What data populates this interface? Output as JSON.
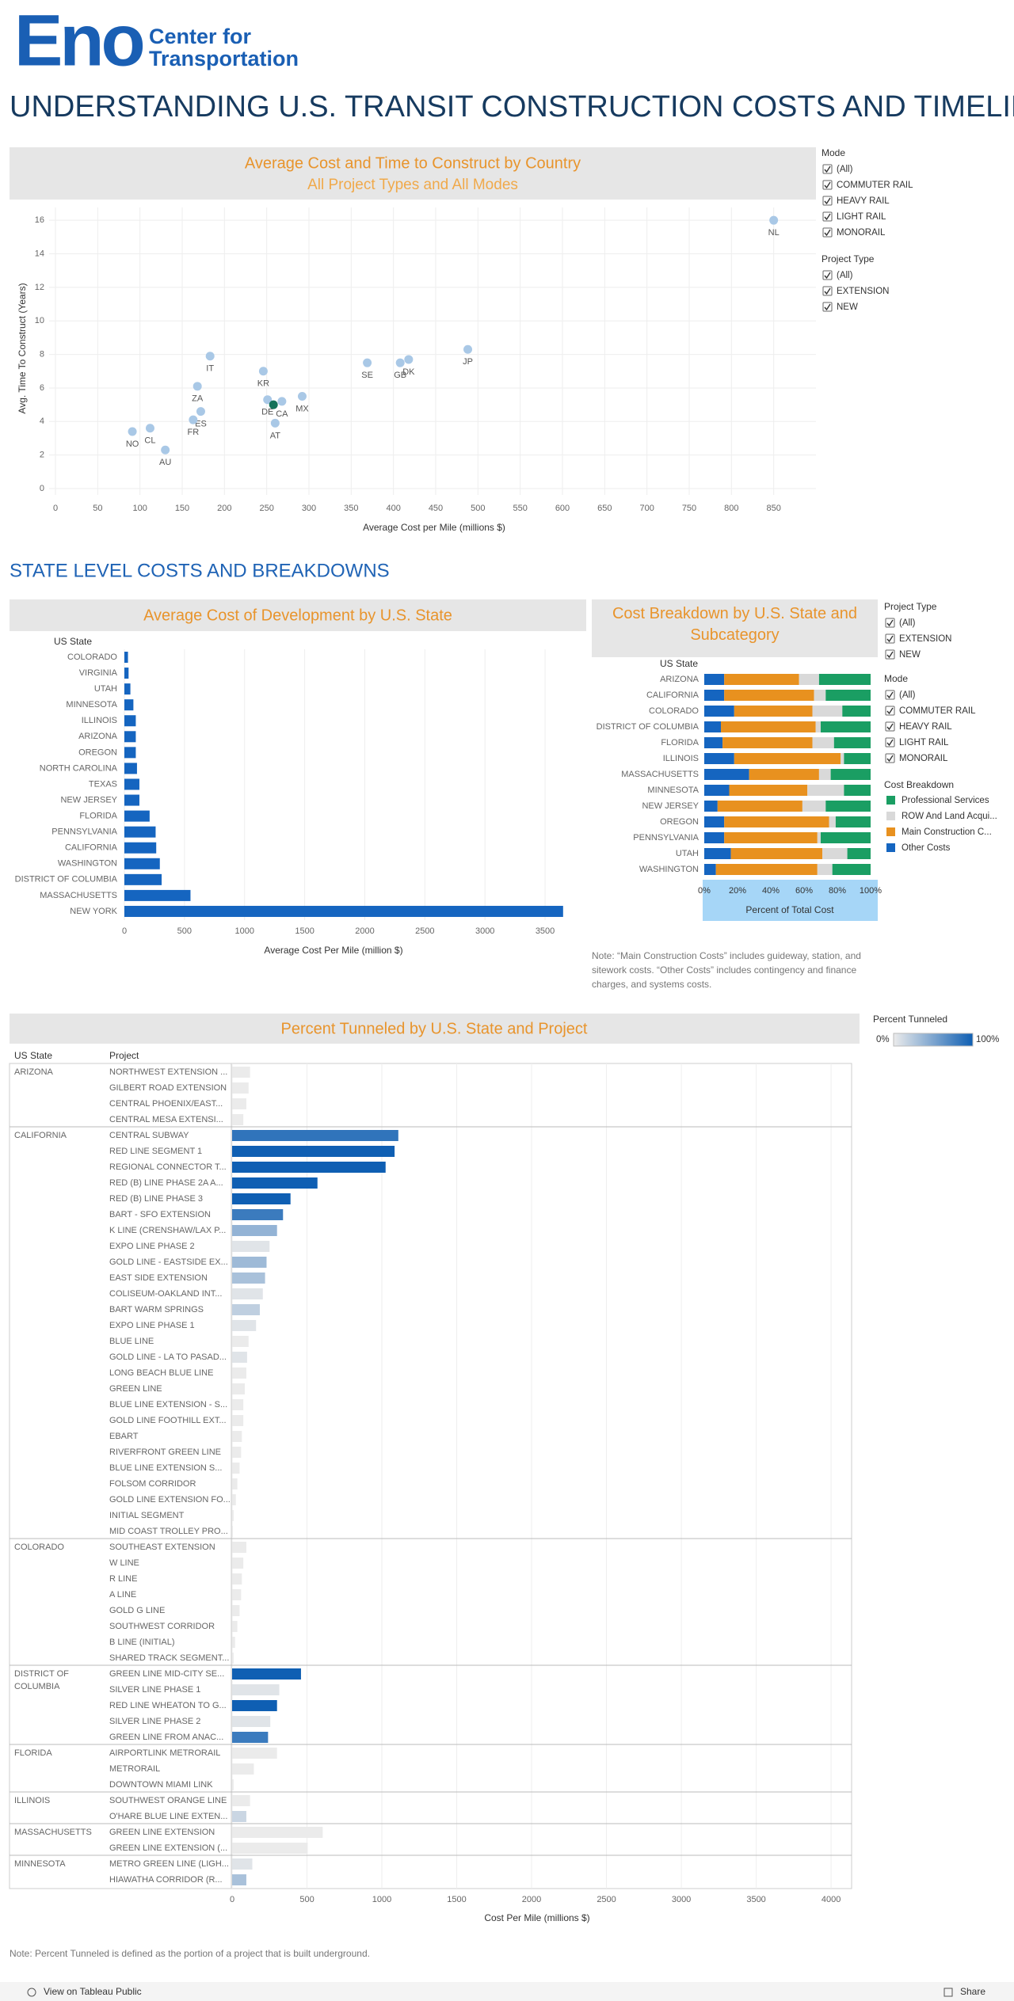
{
  "header": {
    "logo_main": "Eno",
    "logo_line1": "Center for",
    "logo_line2": "Transportation",
    "title": "UNDERSTANDING U.S. TRANSIT CONSTRUCTION COSTS AND TIMELINES"
  },
  "filters_top": {
    "mode_title": "Mode",
    "mode_options": [
      "(All)",
      "COMMUTER RAIL",
      "HEAVY RAIL",
      "LIGHT RAIL",
      "MONORAIL"
    ],
    "project_type_title": "Project Type",
    "project_type_options": [
      "(All)",
      "EXTENSION",
      "NEW"
    ]
  },
  "section_heading": "STATE LEVEL COSTS AND BREAKDOWNS",
  "filters_state": {
    "project_type_title": "Project Type",
    "project_type_options": [
      "(All)",
      "EXTENSION",
      "NEW"
    ],
    "mode_title": "Mode",
    "mode_options": [
      "(All)",
      "COMMUTER RAIL",
      "HEAVY RAIL",
      "LIGHT RAIL",
      "MONORAIL"
    ]
  },
  "chart_data": [
    {
      "type": "scatter",
      "title": "Average Cost and Time to Construct by Country",
      "subtitle": "All Project Types and All Modes",
      "x_label": "Average Cost per Mile (millions $)",
      "y_label": "Avg. Time To Construct (Years)",
      "point_labels": [
        "NL",
        "JP",
        "DK",
        "GB",
        "SE",
        "IT",
        "KR",
        "ZA",
        "ES",
        "FR",
        "DE",
        null,
        "CA",
        "MX",
        "AT",
        "NO",
        "CL",
        "AU"
      ],
      "x": [
        850,
        488,
        418,
        408,
        369,
        183,
        246,
        168,
        172,
        163,
        251,
        258,
        268,
        292,
        260,
        91,
        112,
        130
      ],
      "values": [
        16.0,
        8.3,
        7.7,
        7.5,
        7.5,
        7.9,
        7.0,
        6.1,
        4.6,
        4.1,
        5.3,
        5.0,
        5.2,
        5.5,
        3.9,
        3.4,
        3.6,
        2.3
      ],
      "colors": [
        "#a9c8e6",
        "#a9c8e6",
        "#a9c8e6",
        "#a9c8e6",
        "#a9c8e6",
        "#a9c8e6",
        "#a9c8e6",
        "#a9c8e6",
        "#a9c8e6",
        "#a9c8e6",
        "#a9c8e6",
        "#14725a",
        "#a9c8e6",
        "#a9c8e6",
        "#a9c8e6",
        "#a9c8e6",
        "#a9c8e6",
        "#a9c8e6"
      ],
      "xlim": [
        0,
        900
      ],
      "xticks": [
        0,
        50,
        100,
        150,
        200,
        250,
        300,
        350,
        400,
        450,
        500,
        550,
        600,
        650,
        700,
        750,
        800,
        850
      ],
      "ylim": [
        0,
        17
      ],
      "yticks": [
        0,
        2,
        4,
        6,
        8,
        10,
        12,
        14,
        16
      ],
      "grid": true
    },
    {
      "type": "bar",
      "orientation": "horizontal",
      "title": "Average Cost of Development by U.S. State",
      "y_axis_title": "US State",
      "x_label": "Average Cost Per Mile (million $)",
      "categories": [
        "COLORADO",
        "VIRGINIA",
        "UTAH",
        "MINNESOTA",
        "ILLINOIS",
        "ARIZONA",
        "OREGON",
        "NORTH CAROLINA",
        "TEXAS",
        "NEW JERSEY",
        "FLORIDA",
        "PENNSYLVANIA",
        "CALIFORNIA",
        "WASHINGTON",
        "DISTRICT OF COLUMBIA",
        "MASSACHUSETTS",
        "NEW YORK"
      ],
      "values": [
        30,
        35,
        50,
        75,
        95,
        95,
        95,
        105,
        125,
        125,
        210,
        260,
        265,
        295,
        310,
        550,
        3650
      ],
      "color": "#1565c0",
      "xlim": [
        0,
        3750
      ],
      "xticks": [
        0,
        500,
        1000,
        1500,
        2000,
        2500,
        3000,
        3500
      ],
      "grid": true
    },
    {
      "type": "stacked_bar",
      "orientation": "horizontal",
      "title": "Cost Breakdown by U.S. State and Subcategory",
      "y_axis_title": "US State",
      "x_label": "Percent of Total Cost",
      "legend_title": "Cost Breakdown",
      "categories": [
        "ARIZONA",
        "CALIFORNIA",
        "COLORADO",
        "DISTRICT OF COLUMBIA",
        "FLORIDA",
        "ILLINOIS",
        "MASSACHUSETTS",
        "MINNESOTA",
        "NEW JERSEY",
        "OREGON",
        "PENNSYLVANIA",
        "UTAH",
        "WASHINGTON"
      ],
      "series": [
        {
          "name": "Professional Services",
          "color": "#1a9e63",
          "values": [
            31,
            27,
            17,
            30,
            22,
            16,
            24,
            16,
            27,
            21,
            30,
            14,
            23
          ]
        },
        {
          "name": "ROW And Land Acqui...",
          "color": "#d9d9d9",
          "values": [
            12,
            7,
            18,
            3,
            13,
            2,
            7,
            22,
            14,
            4,
            2,
            15,
            9
          ]
        },
        {
          "name": "Main Construction C...",
          "color": "#e8911f",
          "values": [
            45,
            54,
            47,
            57,
            54,
            64,
            42,
            47,
            51,
            63,
            56,
            55,
            61
          ]
        },
        {
          "name": "Other Costs",
          "color": "#1565c0",
          "values": [
            12,
            12,
            18,
            10,
            11,
            18,
            27,
            15,
            8,
            12,
            12,
            16,
            7
          ]
        }
      ],
      "xlim": [
        0,
        100
      ],
      "xticks": [
        {
          "value": 0,
          "label": "0%"
        },
        {
          "value": 20,
          "label": "20%"
        },
        {
          "value": 40,
          "label": "40%"
        },
        {
          "value": 60,
          "label": "60%"
        },
        {
          "value": 80,
          "label": "80%"
        },
        {
          "value": 100,
          "label": "100%"
        }
      ]
    },
    {
      "type": "bar",
      "orientation": "horizontal",
      "title": "Percent Tunneled by U.S. State and Project",
      "columns": [
        "US State",
        "Project"
      ],
      "x_label": "Cost Per Mile (millions $)",
      "legend_title": "Percent Tunneled",
      "legend_ticks": [
        {
          "value": 0,
          "label": "0%"
        },
        {
          "value": 100,
          "label": "100%"
        }
      ],
      "color_range": [
        "#ebebeb",
        "#0f5fb3"
      ],
      "xlim": [
        0,
        4100
      ],
      "xticks": [
        0,
        500,
        1000,
        1500,
        2000,
        2500,
        3000,
        3500,
        4000
      ],
      "grid": true,
      "groups": [
        {
          "state": "ARIZONA",
          "projects": [
            "NORTHWEST EXTENSION ...",
            "GILBERT ROAD EXTENSION",
            "CENTRAL PHOENIX/EAST...",
            "CENTRAL MESA EXTENSI..."
          ],
          "values": [
            120,
            110,
            95,
            75
          ],
          "percent_tunneled": [
            0,
            0,
            0,
            0
          ]
        },
        {
          "state": "CALIFORNIA",
          "projects": [
            "CENTRAL SUBWAY",
            "RED LINE SEGMENT 1",
            "REGIONAL CONNECTOR T...",
            "RED (B) LINE PHASE 2A A...",
            "RED (B) LINE PHASE 3",
            "BART - SFO EXTENSION",
            "K LINE (CRENSHAW/LAX P...",
            "EXPO LINE PHASE 2",
            "GOLD LINE - EASTSIDE EX...",
            "EAST SIDE EXTENSION",
            "COLISEUM-OAKLAND INT...",
            "BART WARM SPRINGS",
            "EXPO LINE PHASE 1",
            "BLUE LINE",
            "GOLD LINE - LA TO PASAD...",
            "LONG BEACH BLUE LINE",
            "GREEN LINE",
            "BLUE LINE EXTENSION - S...",
            "GOLD LINE FOOTHILL EXT...",
            "EBART",
            "RIVERFRONT GREEN LINE",
            "BLUE LINE EXTENSION  S...",
            "FOLSOM CORRIDOR",
            "GOLD LINE EXTENSION FO...",
            "INITIAL SEGMENT",
            "MID COAST TROLLEY PRO..."
          ],
          "values": [
            1110,
            1085,
            1025,
            570,
            390,
            340,
            300,
            250,
            230,
            220,
            205,
            185,
            160,
            110,
            100,
            95,
            85,
            75,
            75,
            65,
            60,
            50,
            35,
            25,
            10,
            5
          ],
          "percent_tunneled": [
            85,
            100,
            100,
            100,
            100,
            80,
            40,
            5,
            35,
            30,
            5,
            20,
            5,
            0,
            5,
            0,
            0,
            0,
            0,
            0,
            0,
            0,
            0,
            0,
            0,
            0
          ]
        },
        {
          "state": "COLORADO",
          "projects": [
            "SOUTHEAST EXTENSION",
            "W LINE",
            "R LINE",
            "A LINE",
            "GOLD G LINE",
            "SOUTHWEST CORRIDOR",
            "B LINE (INITIAL)",
            "SHARED TRACK SEGMENT..."
          ],
          "values": [
            95,
            75,
            65,
            60,
            50,
            35,
            20,
            10
          ],
          "percent_tunneled": [
            0,
            0,
            0,
            0,
            0,
            0,
            0,
            0
          ]
        },
        {
          "state": "DISTRICT OF COLUMBIA",
          "projects": [
            "GREEN LINE MID-CITY SE...",
            "SILVER LINE PHASE 1",
            "RED LINE WHEATON TO G...",
            "SILVER LINE PHASE 2",
            "GREEN LINE FROM ANAC..."
          ],
          "values": [
            460,
            315,
            300,
            255,
            240
          ],
          "percent_tunneled": [
            100,
            5,
            100,
            5,
            80
          ]
        },
        {
          "state": "FLORIDA",
          "projects": [
            "AIRPORTLINK METRORAIL",
            "METRORAIL",
            "DOWNTOWN MIAMI LINK"
          ],
          "values": [
            300,
            145,
            10
          ],
          "percent_tunneled": [
            0,
            0,
            0
          ]
        },
        {
          "state": "ILLINOIS",
          "projects": [
            "SOUTHWEST ORANGE LINE",
            "O'HARE BLUE LINE EXTEN..."
          ],
          "values": [
            120,
            95
          ],
          "percent_tunneled": [
            0,
            15
          ]
        },
        {
          "state": "MASSACHUSETTS",
          "projects": [
            "GREEN LINE EXTENSION",
            "GREEN LINE EXTENSION (..."
          ],
          "values": [
            605,
            505
          ],
          "percent_tunneled": [
            0,
            0
          ]
        },
        {
          "state": "MINNESOTA",
          "projects": [
            "METRO GREEN LINE (LIGH...",
            "HIAWATHA CORRIDOR (R..."
          ],
          "values": [
            135,
            95
          ],
          "percent_tunneled": [
            5,
            30
          ]
        }
      ]
    }
  ],
  "notes": {
    "breakdown": "Note: “Main Construction Costs” includes guideway, station, and sitework costs. “Other Costs” includes contingency and finance charges, and systems costs.",
    "tunneled": "Note: Percent Tunneled is defined as the portion of a project that is built underground."
  },
  "footer": {
    "tableau": "View on Tableau Public",
    "share": "Share"
  }
}
